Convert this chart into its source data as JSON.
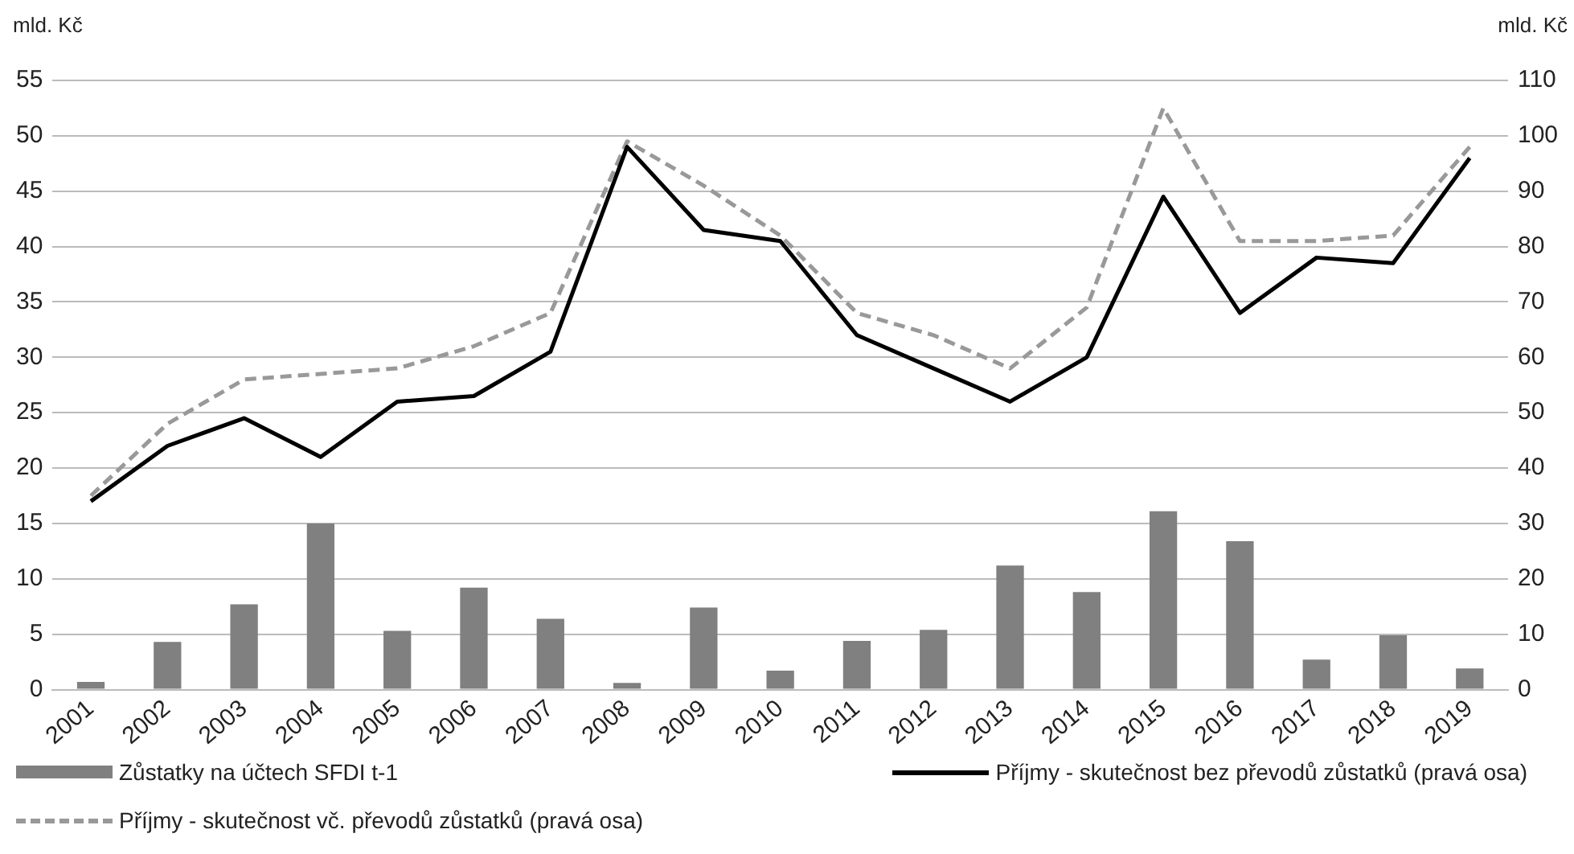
{
  "chart_data": {
    "type": "bar",
    "ylabel": "mld. Kč",
    "y2label": "mld. Kč",
    "categories": [
      "2001",
      "2002",
      "2003",
      "2004",
      "2005",
      "2006",
      "2007",
      "2008",
      "2009",
      "2010",
      "2011",
      "2012",
      "2013",
      "2014",
      "2015",
      "2016",
      "2017",
      "2018",
      "2019"
    ],
    "series": [
      {
        "name": "Zůstatky na účtech SFDI t-1",
        "color": "#808080",
        "values": [
          0.7,
          4.3,
          7.7,
          15,
          5.3,
          9.2,
          6.4,
          0.6,
          7.4,
          1.7,
          4.4,
          5.4,
          11.2,
          8.8,
          16.1,
          13.4,
          2.7,
          4.9,
          1.9
        ]
      },
      {
        "name": "Příjmy - skutečnost bez převodů zůstatků (pravá osa)",
        "type": "line",
        "axis": "y2",
        "line_style": "solid",
        "color": "#000000",
        "values": [
          34,
          44,
          49,
          42,
          52,
          53,
          61,
          98,
          83,
          81,
          64,
          58,
          52,
          60,
          89,
          68,
          78,
          77,
          96
        ]
      },
      {
        "name": "Příjmy - skutečnost vč. převodů zůstatků (pravá osa)",
        "type": "line",
        "axis": "y2",
        "line_style": "dashed",
        "color": "#999999",
        "values": [
          35,
          48,
          56,
          57,
          58,
          62,
          68,
          99,
          91,
          82,
          68,
          64,
          58,
          69,
          105,
          81,
          81,
          82,
          98
        ]
      }
    ],
    "ylim": [
      0,
      55
    ],
    "yticks": [
      0,
      5,
      10,
      15,
      20,
      25,
      30,
      35,
      40,
      45,
      50,
      55
    ],
    "y2lim": [
      0,
      110
    ],
    "y2ticks": [
      0,
      10,
      20,
      30,
      40,
      50,
      60,
      70,
      80,
      90,
      100,
      110
    ],
    "grid": "y",
    "legend": "bottom",
    "marker": "none"
  }
}
